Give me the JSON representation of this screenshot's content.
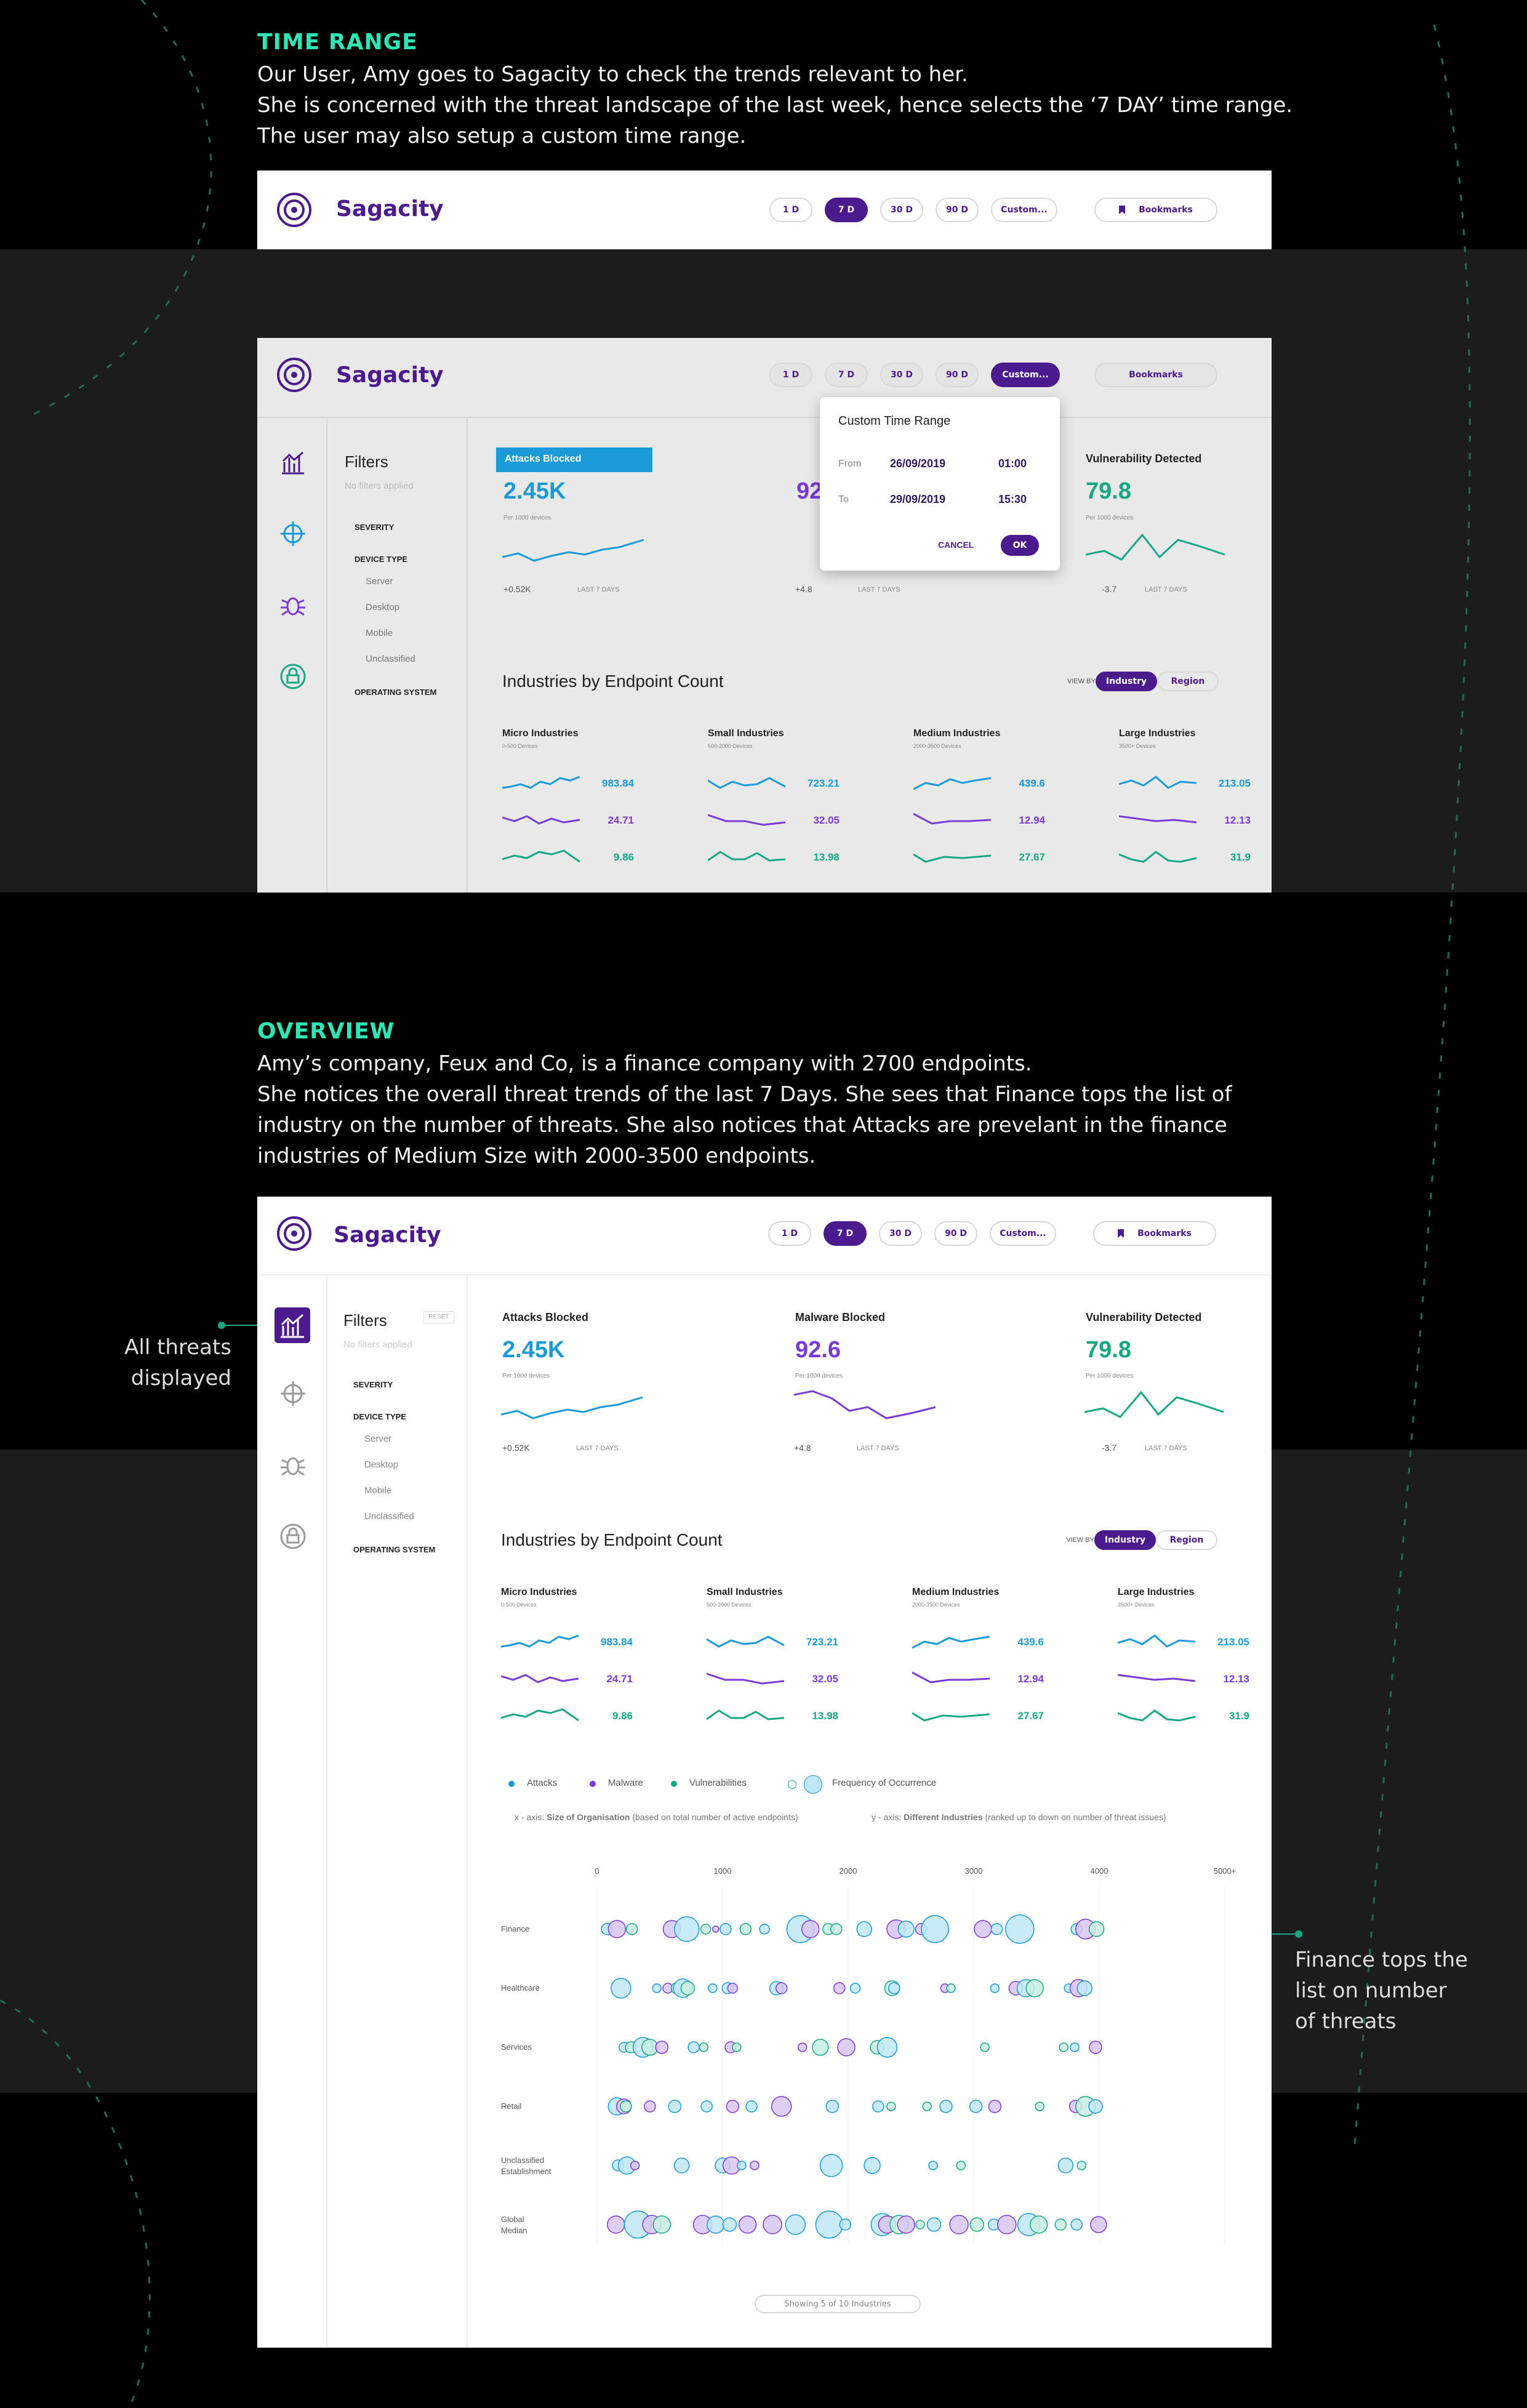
{
  "brand": {
    "name": "Sagacity",
    "accent": "#4b1a8c",
    "teal": "#2ee6b3"
  },
  "sections": {
    "time_range": {
      "heading": "TIME RANGE",
      "lines": [
        "Our User, Amy goes to Sagacity to check the trends relevant to her.",
        "She is concerned with the threat landscape of the last week, hence selects the ‘7 DAY’ time range.",
        "The user may also setup a custom time range."
      ]
    },
    "overview": {
      "heading": "OVERVIEW",
      "lines": [
        "Amy’s company, Feux and Co, is a finance company with 2700 endpoints.",
        "She notices the overall threat trends of the last 7 Days. She sees that Finance tops the list of",
        "industry on the number of threats. She also notices that Attacks are prevelant in the finance",
        "industries of Medium Size with 2000-3500 endpoints."
      ]
    }
  },
  "time_buttons": [
    "1 D",
    "7 D",
    "30 D",
    "90 D",
    "Custom..."
  ],
  "bookmarks_label": "Bookmarks",
  "filters": {
    "title": "Filters",
    "reset": "RESET",
    "none": "No filters applied",
    "severity": "SEVERITY",
    "device_type": "DEVICE TYPE",
    "devices": [
      "Server",
      "Desktop",
      "Mobile",
      "Unclassified"
    ],
    "os": "OPERATING SYSTEM"
  },
  "custom_range": {
    "title": "Custom Time Range",
    "from_label": "From",
    "from_date": "26/09/2019",
    "from_time": "01:00",
    "to_label": "To",
    "to_date": "29/09/2019",
    "to_time": "15:30",
    "cancel": "CANCEL",
    "ok": "OK"
  },
  "cards": [
    {
      "title": "Attacks Blocked",
      "value": "2.45K",
      "sub": "Per 1000 devices",
      "delta": "+0.52K",
      "period": "LAST 7 DAYS",
      "color": "#1a9ad6",
      "dir": "up"
    },
    {
      "title": "Malware Blocked",
      "value": "92.6",
      "sub": "Per 1000 devices",
      "delta": "+4.8",
      "period": "LAST 7 DAYS",
      "color": "#7a3ad6",
      "dir": "up"
    },
    {
      "title": "Vulnerability Detected",
      "value": "79.8",
      "sub": "Per 1000 devices",
      "delta": "-3.7",
      "period": "LAST 7 DAYS",
      "color": "#15a882",
      "dir": "down"
    }
  ],
  "endpoint": {
    "title": "Industries by Endpoint Count",
    "view_by": "VIEW BY",
    "toggle": [
      "Industry",
      "Region"
    ],
    "groups": [
      {
        "name": "Micro Industries",
        "range": "0-500 Devices",
        "values": [
          "983.84",
          "24.71",
          "9.86"
        ]
      },
      {
        "name": "Small Industries",
        "range": "500-2000 Devices",
        "values": [
          "723.21",
          "32.05",
          "13.98"
        ]
      },
      {
        "name": "Medium Industries",
        "range": "2000-3500 Devices",
        "values": [
          "439.6",
          "12.94",
          "27.67"
        ]
      },
      {
        "name": "Large Industries",
        "range": "3500+ Devices",
        "values": [
          "213.05",
          "12.13",
          "31.9"
        ]
      }
    ]
  },
  "legend": {
    "items": [
      "Attacks",
      "Malware",
      "Vulnerabilities"
    ],
    "freq": "Frequency of Occurrence",
    "x_prefix": "x - axis:",
    "x_bold": "Size of Organisation",
    "x_rest": "(based on total number of active endpoints)",
    "y_prefix": "y - axis:",
    "y_bold": "Different Industries",
    "y_rest": "(ranked up to down on number of threat issues)"
  },
  "bubble_chart": {
    "x_ticks": [
      "0",
      "1000",
      "2000",
      "3000",
      "4000",
      "5000+"
    ],
    "rows": [
      "Finance",
      "Healthcare",
      "Services",
      "Retail",
      "Unclassified Establishment",
      "Global Median"
    ],
    "footer": "Showing 5 of 10 Industries"
  },
  "callouts": {
    "left": [
      "All threats",
      "displayed"
    ],
    "right": [
      "Finance tops the",
      "list on number",
      "of threats"
    ]
  }
}
